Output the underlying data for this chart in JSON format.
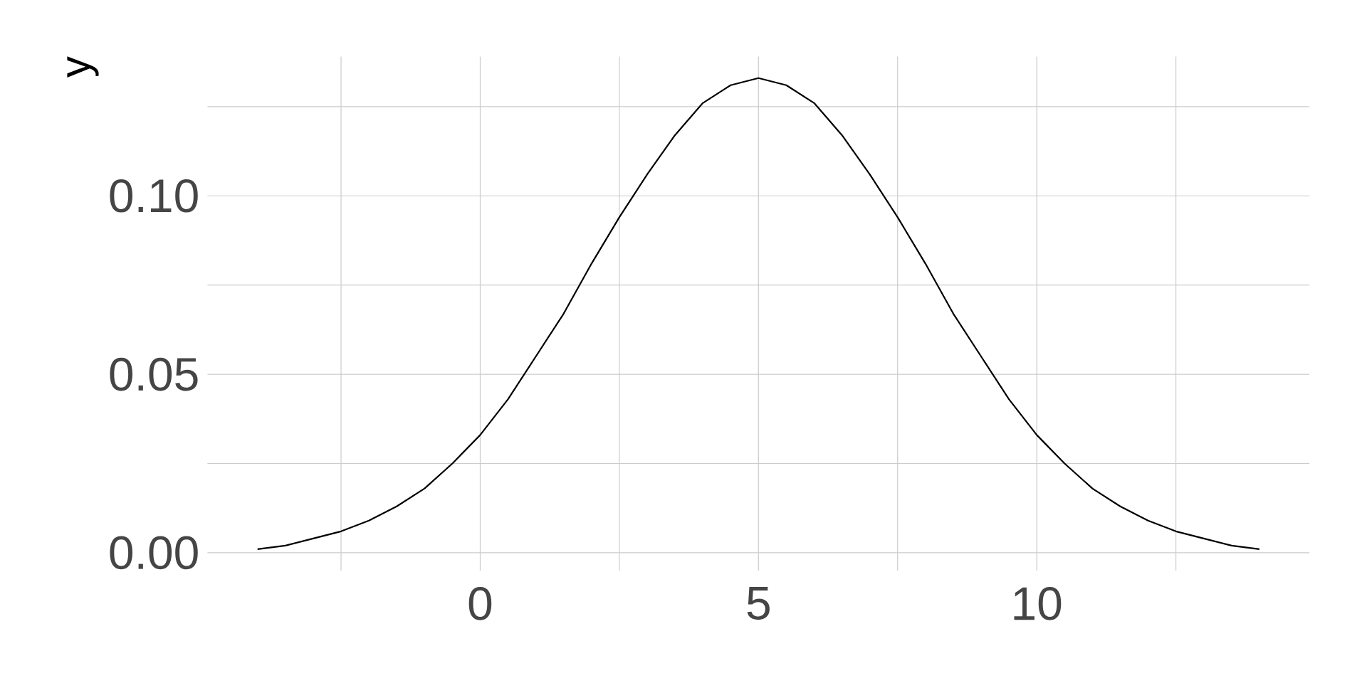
{
  "chart_data": {
    "type": "line",
    "ylabel": "y",
    "x": [
      -4,
      -3.5,
      -3,
      -2.5,
      -2,
      -1.5,
      -1,
      -0.5,
      0,
      0.5,
      1,
      1.5,
      2,
      2.5,
      3,
      3.5,
      4,
      4.5,
      5,
      5.5,
      6,
      6.5,
      7,
      7.5,
      8,
      8.5,
      9,
      9.5,
      10,
      10.5,
      11,
      11.5,
      12,
      12.5,
      13,
      13.5,
      14
    ],
    "series": [
      {
        "color": "#000000",
        "values": [
          0.001,
          0.002,
          0.004,
          0.006,
          0.009,
          0.013,
          0.018,
          0.025,
          0.033,
          0.043,
          0.055,
          0.067,
          0.081,
          0.094,
          0.106,
          0.117,
          0.126,
          0.131,
          0.133,
          0.131,
          0.126,
          0.117,
          0.106,
          0.094,
          0.081,
          0.067,
          0.055,
          0.043,
          0.033,
          0.025,
          0.018,
          0.013,
          0.009,
          0.006,
          0.004,
          0.002,
          0.001
        ]
      }
    ],
    "xlim": [
      -4.9,
      14.9
    ],
    "ylim": [
      -0.005,
      0.139
    ],
    "xticks": [
      {
        "value": -2.5,
        "label": null
      },
      0,
      {
        "value": 2.5,
        "label": null
      },
      5,
      {
        "value": 7.5,
        "label": null
      },
      10,
      {
        "value": 12.5,
        "label": null
      }
    ],
    "yticks": [
      {
        "value": 0,
        "label": "0.00"
      },
      {
        "value": 0.025,
        "label": null
      },
      {
        "value": 0.05,
        "label": "0.05"
      },
      {
        "value": 0.075,
        "label": null
      },
      {
        "value": 0.1,
        "label": "0.10"
      },
      {
        "value": 0.125,
        "label": null
      }
    ],
    "grid": true,
    "marker": "none",
    "line_style": "solid"
  }
}
